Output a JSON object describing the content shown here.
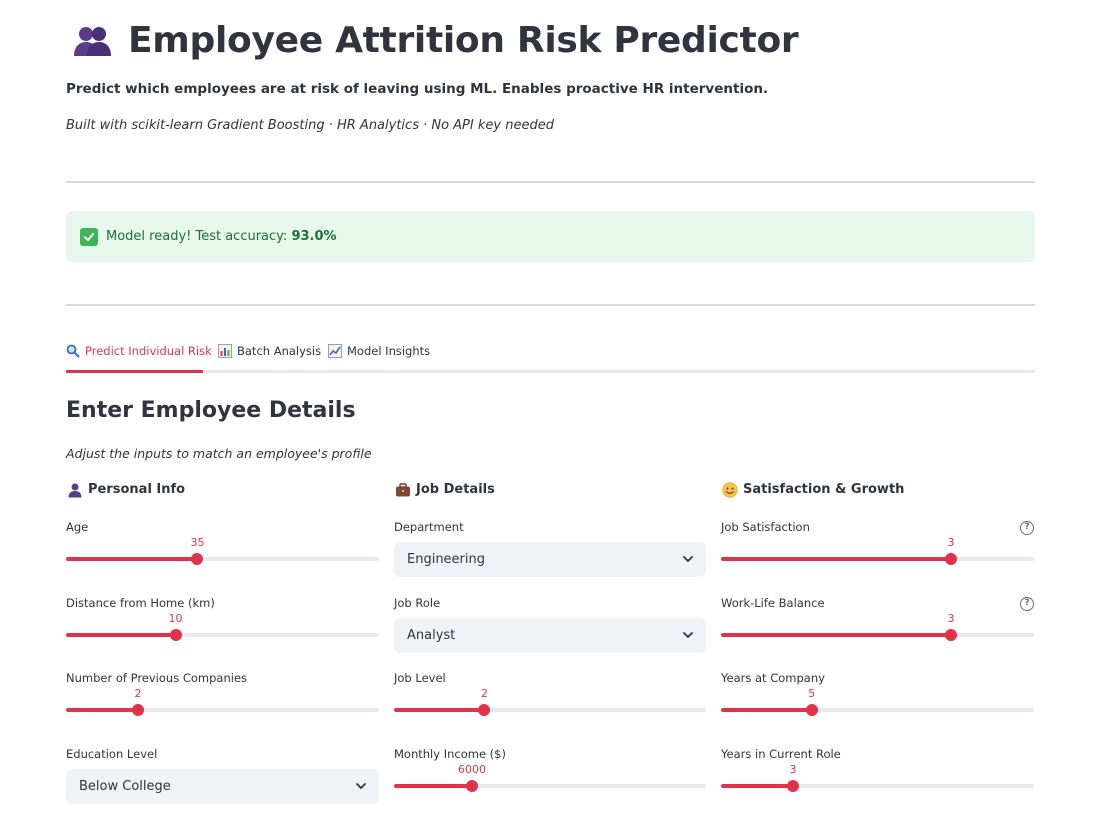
{
  "header": {
    "title": "Employee Attrition Risk Predictor",
    "title_icon": "busts-in-silhouette-icon",
    "subtitle": "Predict which employees are at risk of leaving using ML. Enables proactive HR intervention.",
    "caption": "Built with scikit-learn Gradient Boosting · HR Analytics · No API key needed"
  },
  "alert": {
    "prefix": "Model ready! Test accuracy: ",
    "accuracy": "93.0%",
    "icon": "check-mark-icon"
  },
  "tabs": [
    {
      "label": "Predict Individual Risk",
      "icon": "magnifier-icon",
      "active": true
    },
    {
      "label": "Batch Analysis",
      "icon": "bar-chart-icon",
      "active": false
    },
    {
      "label": "Model Insights",
      "icon": "line-chart-icon",
      "active": false
    }
  ],
  "form": {
    "title": "Enter Employee Details",
    "caption": "Adjust the inputs to match an employee's profile",
    "columns": [
      {
        "heading": "Personal Info",
        "icon": "person-silhouette-icon",
        "fields": [
          {
            "label": "Age",
            "type": "slider",
            "value": "35",
            "fraction": 0.42
          },
          {
            "label": "Distance from Home (km)",
            "type": "slider",
            "value": "10",
            "fraction": 0.35
          },
          {
            "label": "Number of Previous Companies",
            "type": "slider",
            "value": "2",
            "fraction": 0.23
          },
          {
            "label": "Education Level",
            "type": "select",
            "value": "Below College"
          }
        ]
      },
      {
        "heading": "Job Details",
        "icon": "briefcase-icon",
        "fields": [
          {
            "label": "Department",
            "type": "select",
            "value": "Engineering"
          },
          {
            "label": "Job Role",
            "type": "select",
            "value": "Analyst"
          },
          {
            "label": "Job Level",
            "type": "slider",
            "value": "2",
            "fraction": 0.29
          },
          {
            "label": "Monthly Income ($)",
            "type": "slider",
            "value": "6000",
            "fraction": 0.25
          }
        ]
      },
      {
        "heading": "Satisfaction & Growth",
        "icon": "smiling-face-icon",
        "fields": [
          {
            "label": "Job Satisfaction",
            "type": "slider",
            "value": "3",
            "fraction": 0.735,
            "help": "?"
          },
          {
            "label": "Work-Life Balance",
            "type": "slider",
            "value": "3",
            "fraction": 0.735,
            "help": "?"
          },
          {
            "label": "Years at Company",
            "type": "slider",
            "value": "5",
            "fraction": 0.29
          },
          {
            "label": "Years in Current Role",
            "type": "slider",
            "value": "3",
            "fraction": 0.23
          }
        ]
      }
    ]
  },
  "colors": {
    "accent": "#e0334a",
    "success_bg": "#e8f7ec",
    "success_text": "#177233",
    "text": "#31333f"
  }
}
